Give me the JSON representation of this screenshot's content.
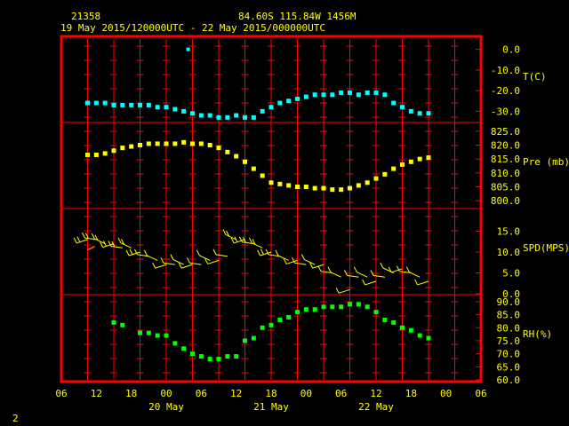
{
  "header": {
    "station_id": "21358",
    "location": "84.60S  115.84W  1456M",
    "period": "19 May 2015/120000UTC - 22 May 2015/000000UTC"
  },
  "footer": {
    "page_number": "2"
  },
  "colors": {
    "frame": "#ff0000",
    "grid": "#ff0000",
    "labels": "#ffff00",
    "header_text": "#ffff00",
    "temperature": "#00ffff",
    "pressure": "#ffff00",
    "wind": "#ffff00",
    "wind_calm": "#ff6a00",
    "humidity": "#00ff00"
  },
  "chart_data": {
    "type": "scatter",
    "x_unit": "hours since 19 May 2015 06UTC",
    "x_ticks": [
      "06",
      "12",
      "18",
      "00",
      "06",
      "12",
      "18",
      "00",
      "06",
      "12",
      "18",
      "00",
      "06"
    ],
    "date_labels": [
      "20 May",
      "21 May",
      "22 May"
    ],
    "panels": [
      {
        "name": "T(C)",
        "unit": "C",
        "ticks": [
          "0.0",
          "-10.0",
          "-20.0",
          "-30.0"
        ],
        "tick_values": [
          0,
          -10,
          -20,
          -30
        ],
        "ylim": [
          -35,
          5
        ],
        "series": {
          "x": [
            6,
            8,
            10,
            12,
            14,
            16,
            18,
            20,
            22,
            24,
            26,
            28,
            30,
            32,
            34,
            36,
            38,
            40,
            42,
            44,
            46,
            48,
            50,
            52,
            54,
            56,
            58,
            60,
            62,
            64,
            66,
            68,
            70,
            72,
            74,
            76,
            78,
            80,
            82,
            84
          ],
          "y": [
            -26,
            -26,
            -26,
            -27,
            -27,
            -27,
            -27,
            -27,
            -28,
            -28,
            -29,
            -30,
            -31,
            -32,
            -32,
            -33,
            -33,
            -32,
            -33,
            -33,
            -30,
            -28,
            -26,
            -25,
            -24,
            -23,
            -22,
            -22,
            -22,
            -21,
            -21,
            -22,
            -21,
            -21,
            -22,
            -26,
            -28,
            -30,
            -31,
            -31
          ]
        },
        "extra_points": [
          {
            "x": 29,
            "y": 0
          }
        ]
      },
      {
        "name": "Pre (mb)",
        "unit": "mb",
        "ticks": [
          "825.0",
          "820.0",
          "815.0",
          "810.0",
          "805.0",
          "800.0"
        ],
        "tick_values": [
          825,
          820,
          815,
          810,
          805,
          800
        ],
        "ylim": [
          797.5,
          827.5
        ],
        "series": {
          "x": [
            6,
            8,
            10,
            12,
            14,
            16,
            18,
            20,
            22,
            24,
            26,
            28,
            30,
            32,
            34,
            36,
            38,
            40,
            42,
            44,
            46,
            48,
            50,
            52,
            54,
            56,
            58,
            60,
            62,
            64,
            66,
            68,
            70,
            72,
            74,
            76,
            78,
            80,
            82,
            84
          ],
          "y": [
            816.5,
            816.5,
            817,
            818,
            819,
            819.5,
            820,
            820.5,
            820.5,
            820.5,
            820.5,
            821,
            820.5,
            820.5,
            820,
            819,
            817.5,
            816,
            814,
            811.5,
            809,
            806.5,
            806,
            805.5,
            805,
            805,
            804.5,
            804.5,
            804,
            804,
            804.5,
            805.5,
            806.5,
            808,
            809.5,
            811.5,
            813,
            814,
            815,
            815.5
          ]
        }
      },
      {
        "name": "SPD(MPS)",
        "unit": "m/s",
        "ticks": [
          "15.0",
          "10.0",
          "5.0",
          "0.0"
        ],
        "tick_values": [
          15,
          10,
          5,
          0
        ],
        "ylim": [
          0,
          20
        ],
        "series": {
          "x": [
            6,
            8,
            10,
            12,
            14,
            16,
            18,
            20,
            22,
            24,
            26,
            28,
            30,
            32,
            34,
            36,
            38,
            40,
            42,
            44,
            46,
            48,
            50,
            52,
            54,
            56,
            58,
            60,
            62,
            64,
            66,
            68,
            70,
            72,
            74,
            76,
            78,
            80,
            82,
            84
          ],
          "y": [
            13,
            13,
            12,
            12,
            11,
            11,
            10,
            9,
            8,
            7,
            7,
            7,
            7,
            7,
            8,
            8,
            9,
            13,
            13,
            12,
            11,
            10,
            9,
            8,
            8,
            7,
            7,
            7,
            5,
            4,
            1,
            4,
            4,
            3,
            4,
            5,
            6,
            5,
            4,
            3
          ]
        },
        "extra_points": [
          {
            "x": 6,
            "y": 10.5
          }
        ]
      },
      {
        "name": "RH(%)",
        "unit": "%",
        "ticks": [
          "90.0",
          "85.0",
          "80.0",
          "75.0",
          "70.0",
          "65.0",
          "60.0"
        ],
        "tick_values": [
          90,
          85,
          80,
          75,
          70,
          65,
          60
        ],
        "ylim": [
          60,
          92
        ],
        "series": {
          "x": [
            12,
            14,
            18,
            20,
            22,
            24,
            26,
            28,
            30,
            32,
            34,
            36,
            38,
            40,
            42,
            44,
            46,
            48,
            50,
            52,
            54,
            56,
            58,
            60,
            62,
            64,
            66,
            68,
            70,
            72,
            74,
            76,
            78,
            80,
            82,
            84
          ],
          "y": [
            82,
            81,
            78,
            78,
            77,
            77,
            74,
            72,
            70,
            69,
            68,
            68,
            69,
            69,
            75,
            76,
            80,
            81,
            83,
            84,
            86,
            87,
            87,
            88,
            88,
            88,
            89,
            89,
            88,
            86,
            83,
            82,
            80,
            79,
            77,
            76
          ]
        }
      }
    ]
  }
}
